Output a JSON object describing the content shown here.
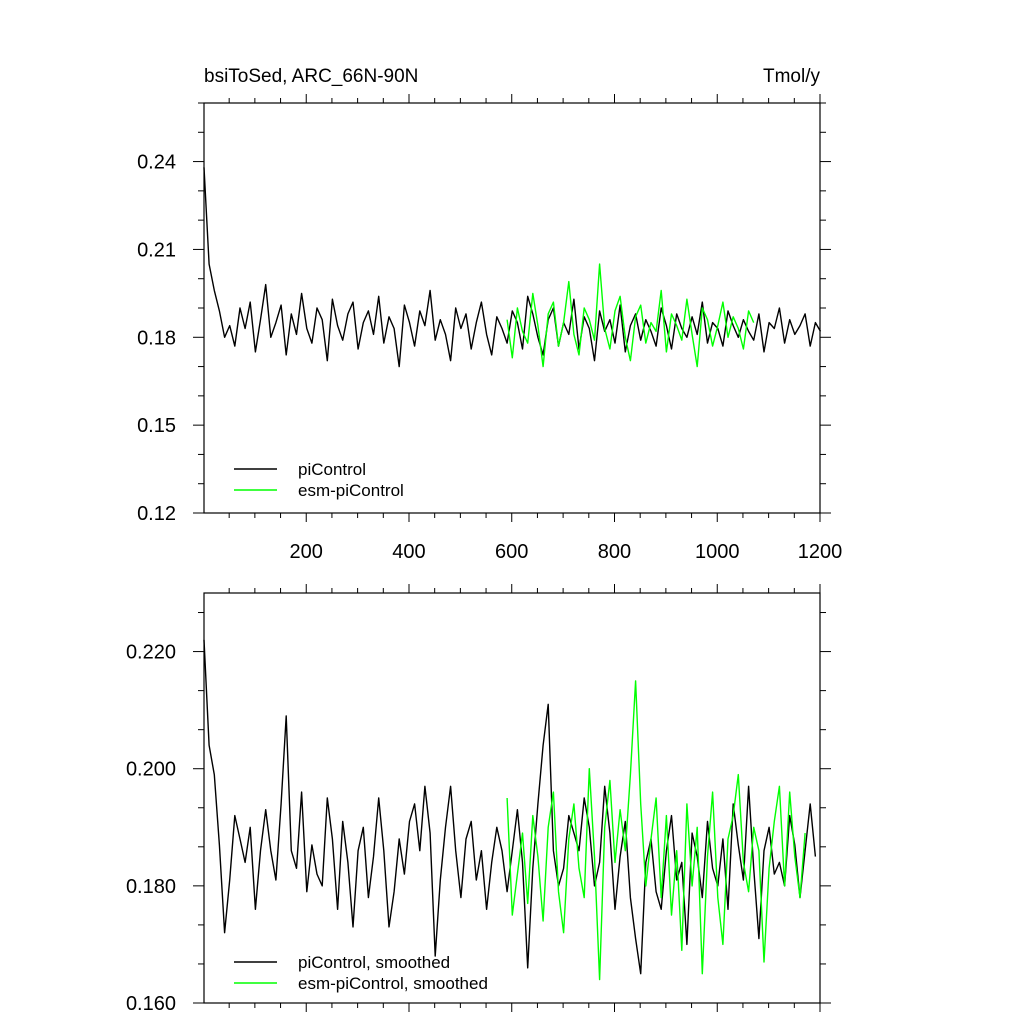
{
  "chart_data": [
    {
      "type": "line",
      "title": "bsiToSed, ARC_66N-90N",
      "units": "Tmol/y",
      "xlim": [
        1,
        1200
      ],
      "ylim": [
        0.12,
        0.26
      ],
      "x_ticks": [
        200,
        400,
        600,
        800,
        1000,
        1200
      ],
      "y_ticks": [
        0.12,
        0.15,
        0.18,
        0.21,
        0.24
      ],
      "y_tick_labels": [
        "0.12",
        "0.15",
        "0.18",
        "0.21",
        "0.24"
      ],
      "legend": "bottom-left",
      "series": [
        {
          "name": "piControl",
          "color": "#000000",
          "x_start": 1,
          "x_step": 10,
          "values": [
            0.238,
            0.205,
            0.196,
            0.189,
            0.18,
            0.184,
            0.177,
            0.19,
            0.183,
            0.192,
            0.175,
            0.186,
            0.198,
            0.18,
            0.185,
            0.191,
            0.174,
            0.188,
            0.181,
            0.195,
            0.183,
            0.178,
            0.19,
            0.186,
            0.172,
            0.193,
            0.184,
            0.179,
            0.188,
            0.192,
            0.176,
            0.185,
            0.189,
            0.181,
            0.194,
            0.178,
            0.187,
            0.183,
            0.17,
            0.191,
            0.185,
            0.177,
            0.189,
            0.184,
            0.196,
            0.179,
            0.186,
            0.181,
            0.172,
            0.19,
            0.183,
            0.188,
            0.176,
            0.185,
            0.192,
            0.181,
            0.174,
            0.187,
            0.183,
            0.178,
            0.189,
            0.185,
            0.176,
            0.194,
            0.188,
            0.18,
            0.174,
            0.186,
            0.19,
            0.177,
            0.185,
            0.181,
            0.193,
            0.176,
            0.187,
            0.183,
            0.172,
            0.189,
            0.182,
            0.186,
            0.178,
            0.191,
            0.175,
            0.184,
            0.188,
            0.179,
            0.186,
            0.182,
            0.177,
            0.19,
            0.184,
            0.176,
            0.188,
            0.183,
            0.18,
            0.187,
            0.181,
            0.192,
            0.178,
            0.185,
            0.183,
            0.177,
            0.189,
            0.184,
            0.18,
            0.186,
            0.182,
            0.179,
            0.188,
            0.175,
            0.185,
            0.183,
            0.19,
            0.178,
            0.186,
            0.181,
            0.184,
            0.188,
            0.177,
            0.185,
            0.182
          ]
        },
        {
          "name": "esm-piControl",
          "color": "#00ff00",
          "x_start": 591,
          "x_step": 10,
          "values": [
            0.186,
            0.173,
            0.19,
            0.182,
            0.178,
            0.195,
            0.184,
            0.17,
            0.188,
            0.192,
            0.177,
            0.185,
            0.199,
            0.181,
            0.174,
            0.19,
            0.186,
            0.179,
            0.205,
            0.183,
            0.176,
            0.189,
            0.194,
            0.18,
            0.172,
            0.187,
            0.191,
            0.178,
            0.185,
            0.182,
            0.196,
            0.175,
            0.188,
            0.184,
            0.179,
            0.193,
            0.181,
            0.17,
            0.19,
            0.186,
            0.177,
            0.184,
            0.192,
            0.18,
            0.187,
            0.183,
            0.176,
            0.189,
            0.185
          ]
        }
      ]
    },
    {
      "type": "line",
      "xlim": [
        1,
        1200
      ],
      "ylim": [
        0.16,
        0.23
      ],
      "y_ticks": [
        0.16,
        0.18,
        0.2,
        0.22
      ],
      "y_tick_labels": [
        "0.160",
        "0.180",
        "0.200",
        "0.220"
      ],
      "legend": "bottom-left",
      "series": [
        {
          "name": "piControl, smoothed",
          "color": "#000000",
          "x_start": 1,
          "x_step": 10,
          "values": [
            0.222,
            0.204,
            0.199,
            0.187,
            0.172,
            0.181,
            0.192,
            0.188,
            0.184,
            0.19,
            0.176,
            0.186,
            0.193,
            0.186,
            0.181,
            0.194,
            0.209,
            0.186,
            0.183,
            0.196,
            0.179,
            0.187,
            0.182,
            0.18,
            0.195,
            0.188,
            0.176,
            0.191,
            0.184,
            0.173,
            0.186,
            0.19,
            0.178,
            0.185,
            0.195,
            0.186,
            0.173,
            0.179,
            0.188,
            0.182,
            0.191,
            0.194,
            0.186,
            0.197,
            0.189,
            0.168,
            0.181,
            0.19,
            0.197,
            0.186,
            0.178,
            0.188,
            0.191,
            0.181,
            0.186,
            0.176,
            0.184,
            0.19,
            0.186,
            0.179,
            0.186,
            0.193,
            0.184,
            0.166,
            0.183,
            0.194,
            0.204,
            0.211,
            0.186,
            0.18,
            0.183,
            0.192,
            0.189,
            0.186,
            0.195,
            0.19,
            0.18,
            0.184,
            0.197,
            0.189,
            0.176,
            0.185,
            0.191,
            0.178,
            0.171,
            0.165,
            0.184,
            0.188,
            0.179,
            0.176,
            0.186,
            0.192,
            0.181,
            0.184,
            0.17,
            0.189,
            0.185,
            0.178,
            0.191,
            0.183,
            0.18,
            0.188,
            0.176,
            0.194,
            0.187,
            0.181,
            0.197,
            0.183,
            0.171,
            0.186,
            0.19,
            0.182,
            0.184,
            0.18,
            0.192,
            0.187,
            0.178,
            0.186,
            0.194,
            0.185
          ]
        },
        {
          "name": "esm-piControl, smoothed",
          "color": "#00ff00",
          "x_start": 591,
          "x_step": 10,
          "values": [
            0.195,
            0.175,
            0.182,
            0.189,
            0.177,
            0.192,
            0.185,
            0.174,
            0.19,
            0.196,
            0.179,
            0.172,
            0.188,
            0.194,
            0.183,
            0.178,
            0.2,
            0.185,
            0.164,
            0.19,
            0.198,
            0.184,
            0.193,
            0.186,
            0.199,
            0.215,
            0.194,
            0.18,
            0.188,
            0.195,
            0.178,
            0.192,
            0.175,
            0.186,
            0.169,
            0.194,
            0.18,
            0.19,
            0.165,
            0.185,
            0.196,
            0.178,
            0.17,
            0.188,
            0.192,
            0.199,
            0.184,
            0.179,
            0.19,
            0.186,
            0.167,
            0.183,
            0.191,
            0.197,
            0.18,
            0.196,
            0.185,
            0.178,
            0.189
          ]
        }
      ]
    }
  ]
}
